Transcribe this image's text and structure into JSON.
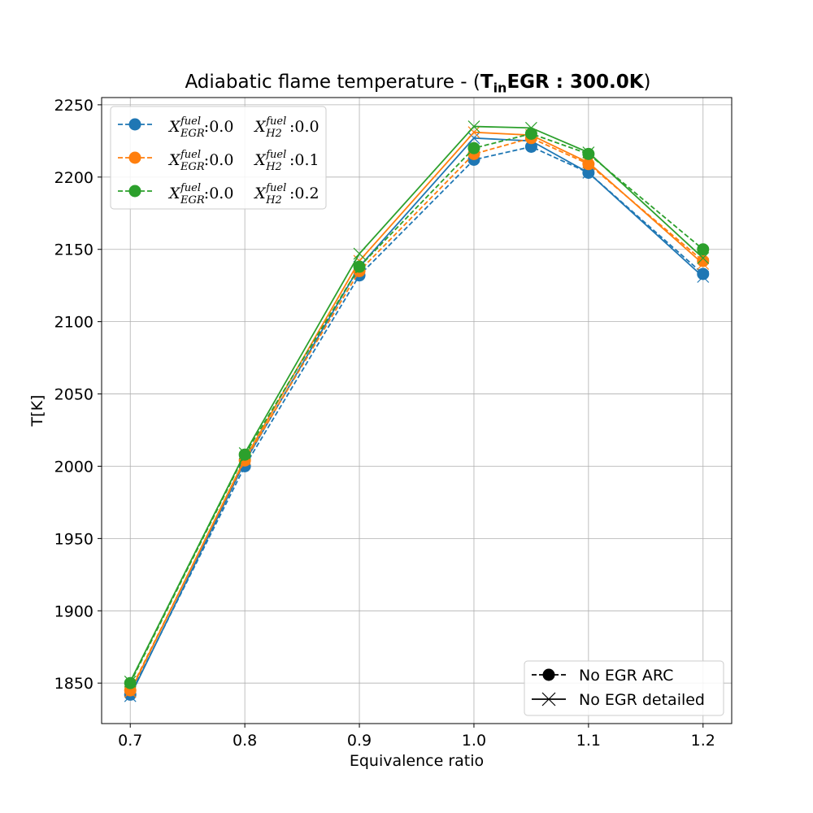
{
  "title": {
    "prefix": "Adiabatic flame temperature - (",
    "bold_main": "T",
    "bold_sub": "in",
    "bold_rest": "EGR : 300.0K",
    "suffix": ")"
  },
  "chart_data": {
    "type": "line",
    "xlabel": "Equivalence ratio",
    "ylabel": "T[K]",
    "xlim": [
      0.675,
      1.225
    ],
    "ylim": [
      1822,
      2255
    ],
    "x_ticks": [
      "0.7",
      "0.8",
      "0.9",
      "1.0",
      "1.1",
      "1.2"
    ],
    "y_ticks": [
      "1850",
      "1900",
      "1950",
      "2000",
      "2050",
      "2100",
      "2150",
      "2200",
      "2250"
    ],
    "grid": true,
    "x": [
      0.7,
      0.8,
      0.9,
      1.0,
      1.05,
      1.1,
      1.2
    ],
    "series": [
      {
        "legend_egr": "0.0",
        "legend_h2": "0.0",
        "h2_sub": "H2",
        "color": "#1f77b4",
        "arc": [
          1842,
          2000,
          2132,
          2212,
          2221,
          2203,
          2133
        ],
        "detailed": [
          1841,
          2003,
          2138,
          2227,
          2225,
          2203,
          2131
        ]
      },
      {
        "legend_egr": "0.0",
        "legend_h2": "0.1",
        "h2_sub": "H2",
        "color": "#ff7f0e",
        "arc": [
          1845,
          2004,
          2135,
          2216,
          2227,
          2209,
          2142
        ],
        "detailed": [
          1844,
          2005,
          2142,
          2231,
          2229,
          2210,
          2140
        ]
      },
      {
        "legend_egr": "0.0",
        "legend_h2": "0.2",
        "h2_sub": "H2",
        "color": "#2ca02c",
        "arc": [
          1850,
          2008,
          2138,
          2220,
          2230,
          2216,
          2150
        ],
        "detailed": [
          1851,
          2009,
          2147,
          2235,
          2234,
          2217,
          2144
        ]
      }
    ],
    "legend_main": {
      "placement": "upper-left",
      "label_prefix": "X",
      "sup": "fuel",
      "egr_sub": "EGR"
    },
    "legend_style": {
      "placement": "lower-right",
      "arc_label": "No EGR ARC",
      "detailed_label": "No EGR detailed"
    }
  }
}
